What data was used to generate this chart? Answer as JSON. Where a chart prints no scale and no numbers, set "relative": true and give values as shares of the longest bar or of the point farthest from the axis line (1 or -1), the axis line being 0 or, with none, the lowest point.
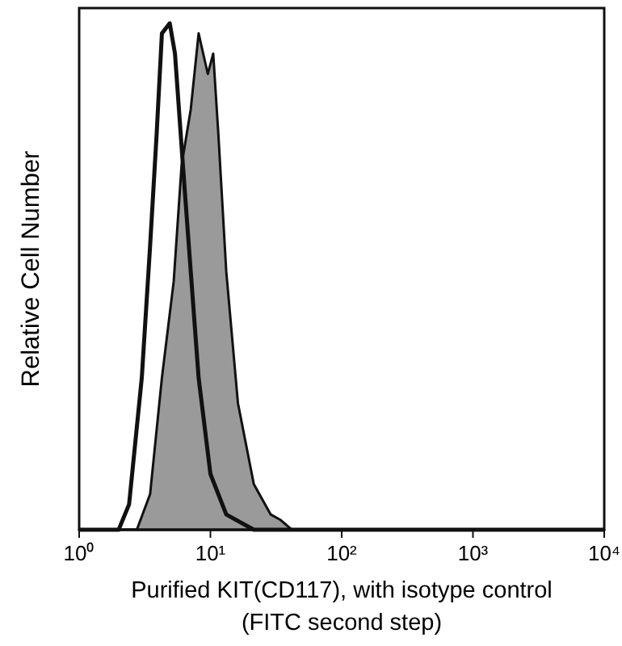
{
  "chart_data": {
    "type": "area",
    "relative": true,
    "log": "x",
    "xlabel": "Purified KIT(CD117), with isotype control\n(FITC second step)",
    "ylabel": "Relative Cell Number",
    "xlim": [
      1,
      10000
    ],
    "xticks": [
      {
        "value": 1,
        "label": "10⁰"
      },
      {
        "value": 10,
        "label": "10¹"
      },
      {
        "value": 100,
        "label": "10²"
      },
      {
        "value": 1000,
        "label": "10³"
      },
      {
        "value": 10000,
        "label": "10⁴"
      }
    ],
    "grid": false,
    "series": [
      {
        "color": "#9a9a9a",
        "x": [
          1,
          2.75,
          3.47,
          4.27,
          5.25,
          6.03,
          7.08,
          8.13,
          9.55,
          10.5,
          11.5,
          13.2,
          16.2,
          21.4,
          28.8,
          33.9,
          41.7,
          10000
        ],
        "values": [
          0,
          0,
          0.07,
          0.3,
          0.49,
          0.72,
          0.83,
          0.98,
          0.9,
          0.94,
          0.78,
          0.51,
          0.25,
          0.09,
          0.03,
          0.02,
          0,
          0
        ]
      },
      {
        "type": "line",
        "color": "#111111",
        "x": [
          1,
          2.0,
          2.4,
          3.0,
          3.47,
          3.89,
          4.27,
          4.9,
          5.37,
          6.17,
          7.08,
          8.13,
          10,
          13.2,
          21.4,
          10000
        ],
        "values": [
          0,
          0,
          0.05,
          0.3,
          0.56,
          0.78,
          0.98,
          1,
          0.94,
          0.72,
          0.51,
          0.3,
          0.11,
          0.03,
          0,
          0
        ]
      }
    ]
  }
}
